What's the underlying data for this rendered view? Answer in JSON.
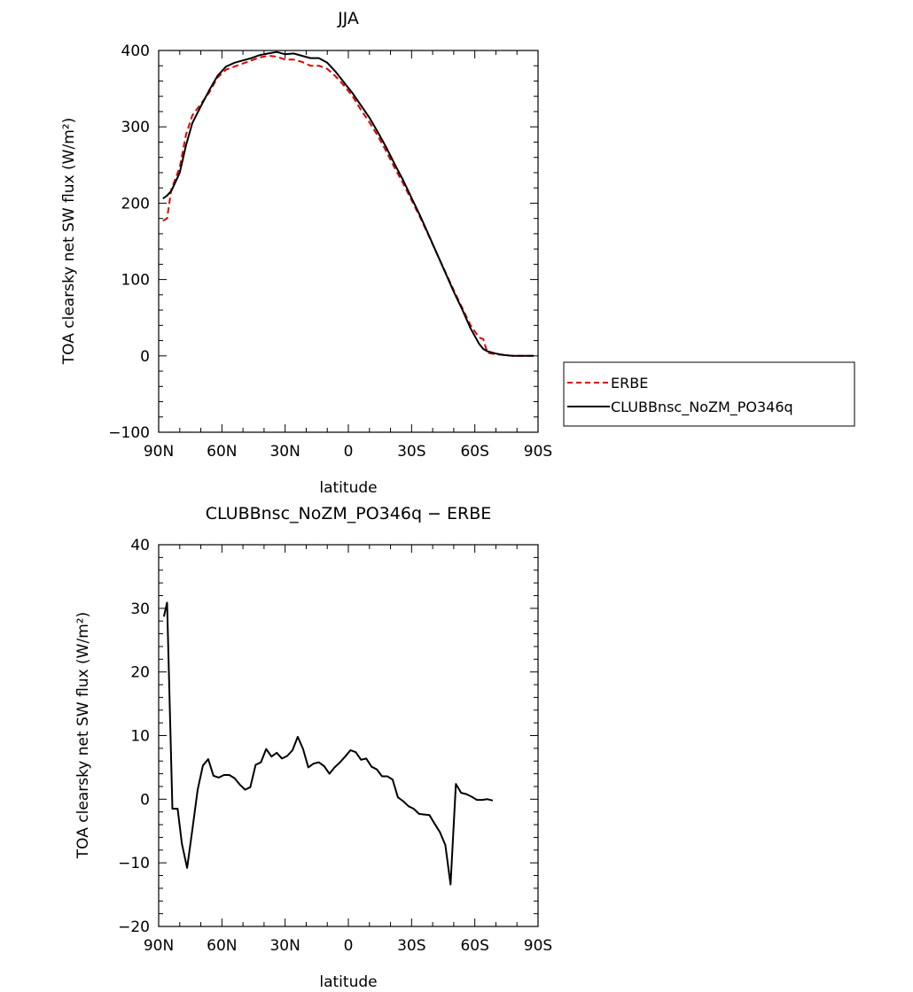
{
  "chart_data": [
    {
      "type": "line",
      "title": "JJA",
      "xlabel": "latitude",
      "ylabel": "TOA clearsky net SW flux (W/m²)",
      "xlim": [
        90,
        -90
      ],
      "ylim": [
        -100,
        400
      ],
      "x_ticks": [
        {
          "value": 90,
          "label": "90N"
        },
        {
          "value": 60,
          "label": "60N"
        },
        {
          "value": 30,
          "label": "30N"
        },
        {
          "value": 0,
          "label": "0"
        },
        {
          "value": -30,
          "label": "30S"
        },
        {
          "value": -60,
          "label": "60S"
        },
        {
          "value": -90,
          "label": "90S"
        }
      ],
      "y_ticks": [
        -100,
        0,
        100,
        200,
        300,
        400
      ],
      "y_tick_labels": [
        "−100",
        "0",
        "100",
        "200",
        "300",
        "400"
      ],
      "legend": "right",
      "grid": false,
      "series": [
        {
          "name": "ERBE",
          "color": "#e00000",
          "dash": "dashed",
          "points": [
            [
              88,
              177
            ],
            [
              86,
              180
            ],
            [
              84,
              218
            ],
            [
              80,
              247
            ],
            [
              77,
              290
            ],
            [
              74,
              315
            ],
            [
              70,
              330
            ],
            [
              66,
              345
            ],
            [
              62,
              365
            ],
            [
              58,
              375
            ],
            [
              54,
              379
            ],
            [
              50,
              383
            ],
            [
              46,
              387
            ],
            [
              42,
              391
            ],
            [
              38,
              393
            ],
            [
              34,
              392
            ],
            [
              30,
              388
            ],
            [
              26,
              388
            ],
            [
              22,
              385
            ],
            [
              18,
              380
            ],
            [
              14,
              380
            ],
            [
              10,
              376
            ],
            [
              6,
              366
            ],
            [
              2,
              354
            ],
            [
              -2,
              340
            ],
            [
              -6,
              322
            ],
            [
              -10,
              306
            ],
            [
              -14,
              288
            ],
            [
              -18,
              268
            ],
            [
              -22,
              246
            ],
            [
              -26,
              226
            ],
            [
              -30,
              204
            ],
            [
              -34,
              182
            ],
            [
              -38,
              158
            ],
            [
              -42,
              134
            ],
            [
              -46,
              110
            ],
            [
              -50,
              86
            ],
            [
              -54,
              63
            ],
            [
              -58,
              40
            ],
            [
              -62,
              24
            ],
            [
              -64,
              22
            ],
            [
              -66,
              4
            ],
            [
              -70,
              2
            ],
            [
              -74,
              1
            ],
            [
              -78,
              0
            ],
            [
              -82,
              0
            ],
            [
              -86,
              0
            ],
            [
              -88,
              0
            ]
          ]
        },
        {
          "name": "CLUBBnsc_NoZM_PO346q",
          "color": "#000000",
          "dash": "solid",
          "points": [
            [
              88,
              206
            ],
            [
              86,
              210
            ],
            [
              84,
              216
            ],
            [
              80,
              240
            ],
            [
              77,
              276
            ],
            [
              74,
              305
            ],
            [
              70,
              327
            ],
            [
              66,
              348
            ],
            [
              62,
              367
            ],
            [
              58,
              379
            ],
            [
              54,
              384
            ],
            [
              50,
              387
            ],
            [
              46,
              390
            ],
            [
              42,
              394
            ],
            [
              38,
              396
            ],
            [
              34,
              398
            ],
            [
              30,
              395
            ],
            [
              26,
              396
            ],
            [
              22,
              393
            ],
            [
              18,
              390
            ],
            [
              14,
              390
            ],
            [
              10,
              384
            ],
            [
              6,
              372
            ],
            [
              2,
              358
            ],
            [
              -2,
              344
            ],
            [
              -6,
              328
            ],
            [
              -10,
              312
            ],
            [
              -14,
              293
            ],
            [
              -18,
              273
            ],
            [
              -22,
              251
            ],
            [
              -26,
              230
            ],
            [
              -30,
              207
            ],
            [
              -34,
              184
            ],
            [
              -38,
              159
            ],
            [
              -42,
              134
            ],
            [
              -46,
              109
            ],
            [
              -50,
              84
            ],
            [
              -54,
              61
            ],
            [
              -58,
              36
            ],
            [
              -62,
              16
            ],
            [
              -64,
              9
            ],
            [
              -66,
              6
            ],
            [
              -70,
              3
            ],
            [
              -74,
              1
            ],
            [
              -78,
              0
            ],
            [
              -82,
              0
            ],
            [
              -86,
              0
            ],
            [
              -88,
              0
            ]
          ]
        }
      ]
    },
    {
      "type": "line",
      "title": "CLUBBnsc_NoZM_PO346q − ERBE",
      "xlabel": "latitude",
      "ylabel": "TOA clearsky net SW flux (W/m²)",
      "xlim": [
        90,
        -90
      ],
      "ylim": [
        -20,
        40
      ],
      "x_ticks": [
        {
          "value": 90,
          "label": "90N"
        },
        {
          "value": 60,
          "label": "60N"
        },
        {
          "value": 30,
          "label": "30N"
        },
        {
          "value": 0,
          "label": "0"
        },
        {
          "value": -30,
          "label": "30S"
        },
        {
          "value": -60,
          "label": "60S"
        },
        {
          "value": -90,
          "label": "90S"
        }
      ],
      "y_ticks": [
        -20,
        -10,
        0,
        10,
        20,
        30,
        40
      ],
      "y_tick_labels": [
        "−20",
        "−10",
        "0",
        "10",
        "20",
        "30",
        "40"
      ],
      "legend": "none",
      "grid": false,
      "series": [
        {
          "color": "#000000",
          "dash": "solid",
          "points": [
            [
              87.5,
              28.7
            ],
            [
              86,
              30.9
            ],
            [
              83.5,
              -1.5
            ],
            [
              81,
              -1.5
            ],
            [
              79,
              -7
            ],
            [
              76.5,
              -10.8
            ],
            [
              74,
              -4.8
            ],
            [
              71.5,
              1.5
            ],
            [
              69,
              5.3
            ],
            [
              66.5,
              6.3
            ],
            [
              64,
              3.7
            ],
            [
              61.5,
              3.4
            ],
            [
              59,
              3.8
            ],
            [
              56.5,
              3.8
            ],
            [
              54,
              3.3
            ],
            [
              51.5,
              2.3
            ],
            [
              49,
              1.5
            ],
            [
              46.5,
              1.9
            ],
            [
              44,
              5.4
            ],
            [
              41.5,
              5.8
            ],
            [
              39,
              7.9
            ],
            [
              36.5,
              6.7
            ],
            [
              34,
              7.3
            ],
            [
              31.5,
              6.4
            ],
            [
              29,
              6.8
            ],
            [
              26.5,
              7.7
            ],
            [
              24,
              9.8
            ],
            [
              21.5,
              7.9
            ],
            [
              19,
              5
            ],
            [
              16.5,
              5.6
            ],
            [
              14,
              5.8
            ],
            [
              11.5,
              5.2
            ],
            [
              9,
              4
            ],
            [
              6.5,
              5
            ],
            [
              4,
              5.8
            ],
            [
              1.5,
              6.7
            ],
            [
              -1,
              7.7
            ],
            [
              -3.5,
              7.4
            ],
            [
              -6,
              6.2
            ],
            [
              -8.5,
              6.4
            ],
            [
              -11,
              5.1
            ],
            [
              -13.5,
              4.7
            ],
            [
              -16,
              3.6
            ],
            [
              -18.5,
              3.6
            ],
            [
              -21,
              3.1
            ],
            [
              -23.5,
              0.3
            ],
            [
              -26,
              -0.3
            ],
            [
              -28.5,
              -1.1
            ],
            [
              -31,
              -1.5
            ],
            [
              -33.5,
              -2.3
            ],
            [
              -36,
              -2.4
            ],
            [
              -38.5,
              -2.5
            ],
            [
              -41,
              -3.9
            ],
            [
              -43.5,
              -5.2
            ],
            [
              -46,
              -7.2
            ],
            [
              -48.5,
              -13.4
            ],
            [
              -51,
              2.4
            ],
            [
              -53.5,
              1
            ],
            [
              -56,
              0.8
            ],
            [
              -58.5,
              0.4
            ],
            [
              -61,
              -0.1
            ],
            [
              -63.5,
              -0.1
            ],
            [
              -66,
              0
            ],
            [
              -68.5,
              -0.2
            ]
          ]
        }
      ]
    }
  ]
}
